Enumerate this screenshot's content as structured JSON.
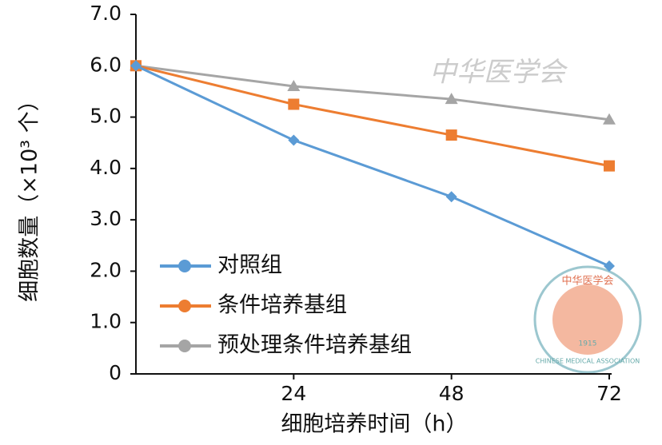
{
  "chart_data": {
    "type": "line",
    "x_label": "细胞培养时间（h）",
    "y_label": "细胞数量（×10³ 个）",
    "x": [
      0,
      24,
      48,
      72
    ],
    "xlim": [
      0,
      72
    ],
    "xticks": [
      24,
      48,
      72
    ],
    "ylim": [
      0,
      7
    ],
    "yticks": [
      0,
      {
        "value": 1,
        "label": "1.0"
      },
      {
        "value": 2,
        "label": "2.0"
      },
      {
        "value": 3,
        "label": "3.0"
      },
      {
        "value": 4,
        "label": "4.0"
      },
      {
        "value": 5,
        "label": "5.0"
      },
      {
        "value": 6,
        "label": "6.0"
      },
      {
        "value": 7,
        "label": "7.0"
      }
    ],
    "series": [
      {
        "name": "对照组",
        "color": "#5b9bd5",
        "marker": "diamond",
        "values": [
          6.0,
          4.55,
          3.45,
          2.1
        ]
      },
      {
        "name": "条件培养基组",
        "color": "#ed7d31",
        "marker": "square",
        "values": [
          6.0,
          5.25,
          4.65,
          4.05
        ]
      },
      {
        "name": "预处理条件培养基组",
        "color": "#a5a5a5",
        "marker": "triangle",
        "values": [
          6.0,
          5.6,
          5.35,
          4.95
        ]
      }
    ],
    "legend": "lower left",
    "watermark": "中华医学会",
    "logo": {
      "text": "中华医学会",
      "english": "CHINESE MEDICAL ASSOCIATION",
      "year": "1915"
    }
  }
}
